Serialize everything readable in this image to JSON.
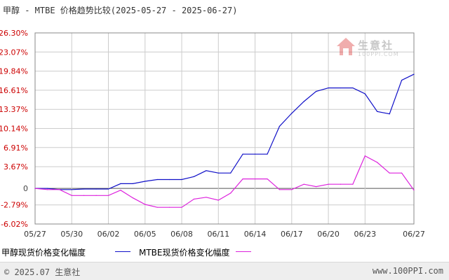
{
  "header": {
    "title": "甲醇 - MTBE 价格趋势比较(2025-05-27 - 2025-06-27)"
  },
  "colors": {
    "series1": "#1010c8",
    "series2": "#dd22dd",
    "axis_label_red": "#cc0000",
    "grid": "#cccccc"
  },
  "watermark": {
    "text": "生意社",
    "sub": "100PPI.COM",
    "icon": "house-logo-icon"
  },
  "footer": {
    "left": "© 2025.07 生意社",
    "right": "www.100PPI.com"
  },
  "chart_data": {
    "type": "line",
    "title": "甲醇 - MTBE 价格趋势比较(2025-05-27 - 2025-06-27)",
    "ylim": [
      -6.02,
      26.3
    ],
    "yticks": [
      "26.30%",
      "23.07%",
      "19.84%",
      "16.61%",
      "13.37%",
      "10.14%",
      "6.91%",
      "3.67%",
      "0",
      "-2.79%",
      "-6.02%"
    ],
    "ytick_values": [
      26.3,
      23.07,
      19.84,
      16.61,
      13.37,
      10.14,
      6.91,
      3.67,
      0,
      -2.79,
      -6.02
    ],
    "xlim": [
      0,
      31
    ],
    "xticks": [
      "05/27",
      "05/30",
      "06/02",
      "06/05",
      "06/08",
      "06/11",
      "06/14",
      "06/17",
      "06/20",
      "06/23",
      "06/27"
    ],
    "xtick_positions": [
      0,
      3,
      6,
      9,
      12,
      15,
      18,
      21,
      24,
      27,
      31
    ],
    "grid": true,
    "series": [
      {
        "name": "甲醇现货价格变化幅度",
        "x": [
          0,
          1,
          2,
          3,
          4,
          5,
          6,
          7,
          8,
          9,
          10,
          11,
          12,
          13,
          14,
          15,
          16,
          17,
          18,
          19,
          20,
          21,
          22,
          23,
          24,
          25,
          26,
          27,
          28,
          29,
          30,
          31
        ],
        "values": [
          0,
          0,
          -0.2,
          -0.2,
          -0.1,
          -0.1,
          -0.1,
          0.8,
          0.8,
          1.2,
          1.5,
          1.5,
          1.5,
          2.0,
          3.0,
          2.6,
          2.6,
          5.8,
          5.8,
          5.8,
          10.5,
          12.7,
          14.7,
          16.4,
          17.0,
          17.0,
          17.0,
          16.0,
          13.0,
          12.6,
          18.3,
          19.3
        ]
      },
      {
        "name": "MTBE现货价格变化幅度",
        "x": [
          0,
          1,
          2,
          3,
          4,
          5,
          6,
          7,
          8,
          9,
          10,
          11,
          12,
          13,
          14,
          15,
          16,
          17,
          18,
          19,
          20,
          21,
          22,
          23,
          24,
          25,
          26,
          27,
          28,
          29,
          30,
          31
        ],
        "values": [
          0,
          -0.2,
          -0.2,
          -1.2,
          -1.2,
          -1.2,
          -1.2,
          -0.3,
          -1.6,
          -2.7,
          -3.2,
          -3.2,
          -3.2,
          -1.8,
          -1.5,
          -2.0,
          -0.8,
          1.6,
          1.6,
          1.6,
          -0.2,
          -0.2,
          0.7,
          0.3,
          0.7,
          0.7,
          0.7,
          5.5,
          4.4,
          2.6,
          2.6,
          -0.3
        ]
      }
    ]
  }
}
